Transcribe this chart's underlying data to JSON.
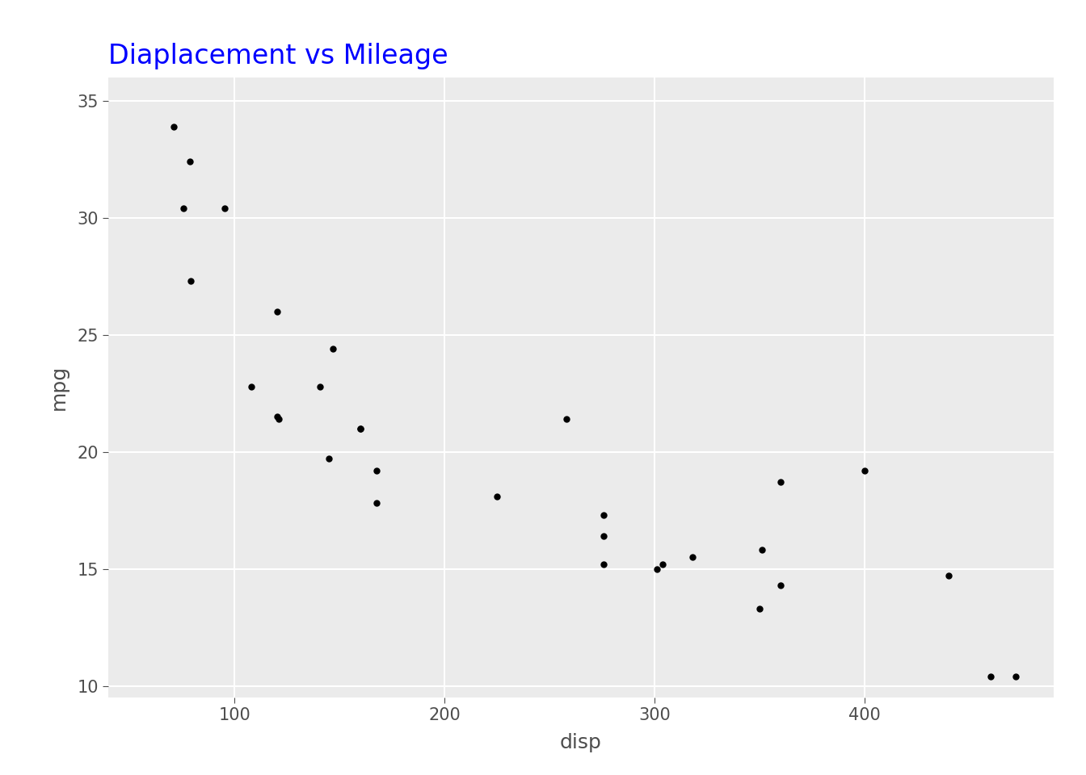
{
  "title": "Diaplacement vs Mileage",
  "xlabel": "disp",
  "ylabel": "mpg",
  "title_color": "blue",
  "axis_label_color": "#4D4D4D",
  "tick_label_color": "#4D4D4D",
  "background_color": "#EBEBEB",
  "panel_background": "#EBEBEB",
  "outer_background": "#FFFFFF",
  "grid_color": "#FFFFFF",
  "point_color": "black",
  "point_size": 25,
  "xlim": [
    40,
    490
  ],
  "ylim": [
    9.5,
    36
  ],
  "xticks": [
    100,
    200,
    300,
    400
  ],
  "yticks": [
    10,
    15,
    20,
    25,
    30,
    35
  ],
  "title_fontsize": 24,
  "axis_label_fontsize": 18,
  "tick_label_fontsize": 15,
  "disp": [
    160.0,
    160.0,
    108.0,
    258.0,
    360.0,
    225.0,
    360.0,
    146.7,
    140.8,
    167.6,
    167.6,
    275.8,
    275.8,
    275.8,
    472.0,
    460.0,
    440.0,
    78.7,
    75.7,
    71.1,
    120.1,
    318.0,
    304.0,
    350.0,
    400.0,
    79.0,
    120.3,
    95.1,
    351.0,
    145.0,
    301.0,
    121.0
  ],
  "mpg": [
    21.0,
    21.0,
    22.8,
    21.4,
    18.7,
    18.1,
    14.3,
    24.4,
    22.8,
    19.2,
    17.8,
    16.4,
    17.3,
    15.2,
    10.4,
    10.4,
    14.7,
    32.4,
    30.4,
    33.9,
    21.5,
    15.5,
    15.2,
    13.3,
    19.2,
    27.3,
    26.0,
    30.4,
    15.8,
    19.7,
    15.0,
    21.4
  ]
}
